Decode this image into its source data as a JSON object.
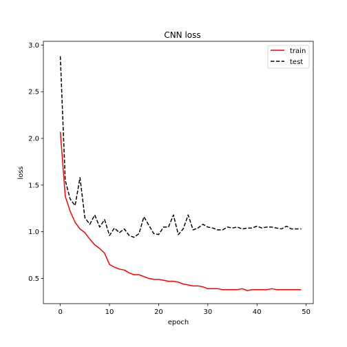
{
  "chart_data": {
    "type": "line",
    "title": "CNN loss",
    "xlabel": "epoch",
    "ylabel": "loss",
    "xlim": [
      -3.45,
      51.45
    ],
    "ylim": [
      0.23,
      3.04
    ],
    "xticks": [
      0,
      10,
      20,
      30,
      40,
      50
    ],
    "yticks": [
      0.5,
      1.0,
      1.5,
      2.0,
      2.5,
      3.0
    ],
    "xtick_labels": [
      "0",
      "10",
      "20",
      "30",
      "40",
      "50"
    ],
    "ytick_labels": [
      "0.5",
      "1.0",
      "1.5",
      "2.0",
      "2.5",
      "3.0"
    ],
    "grid": false,
    "legend_position": "top-right",
    "x": [
      0,
      1,
      2,
      3,
      4,
      5,
      6,
      7,
      8,
      9,
      10,
      11,
      12,
      13,
      14,
      15,
      16,
      17,
      18,
      19,
      20,
      21,
      22,
      23,
      24,
      25,
      26,
      27,
      28,
      29,
      30,
      31,
      32,
      33,
      34,
      35,
      36,
      37,
      38,
      39,
      40,
      41,
      42,
      43,
      44,
      45,
      46,
      47,
      48,
      49
    ],
    "series": [
      {
        "name": "train",
        "color": "#ff0000",
        "style": "solid",
        "values": [
          2.07,
          1.38,
          1.22,
          1.1,
          1.03,
          0.99,
          0.92,
          0.86,
          0.82,
          0.77,
          0.65,
          0.62,
          0.6,
          0.59,
          0.56,
          0.54,
          0.54,
          0.52,
          0.5,
          0.49,
          0.49,
          0.48,
          0.47,
          0.47,
          0.46,
          0.44,
          0.43,
          0.42,
          0.42,
          0.41,
          0.39,
          0.39,
          0.39,
          0.38,
          0.38,
          0.38,
          0.38,
          0.39,
          0.37,
          0.38,
          0.38,
          0.38,
          0.38,
          0.39,
          0.38,
          0.38,
          0.38,
          0.38,
          0.38,
          0.38
        ]
      },
      {
        "name": "test",
        "color": "#000000",
        "style": "dashed",
        "values": [
          2.88,
          1.55,
          1.35,
          1.28,
          1.58,
          1.15,
          1.08,
          1.18,
          1.05,
          1.13,
          0.96,
          1.04,
          0.99,
          1.03,
          0.96,
          0.94,
          0.98,
          1.16,
          1.07,
          0.98,
          0.97,
          1.05,
          1.05,
          1.18,
          0.97,
          1.03,
          1.18,
          1.02,
          1.04,
          1.08,
          1.05,
          1.04,
          1.02,
          1.02,
          1.05,
          1.04,
          1.05,
          1.03,
          1.04,
          1.04,
          1.06,
          1.04,
          1.05,
          1.05,
          1.04,
          1.03,
          1.06,
          1.03,
          1.03,
          1.03
        ]
      }
    ]
  }
}
